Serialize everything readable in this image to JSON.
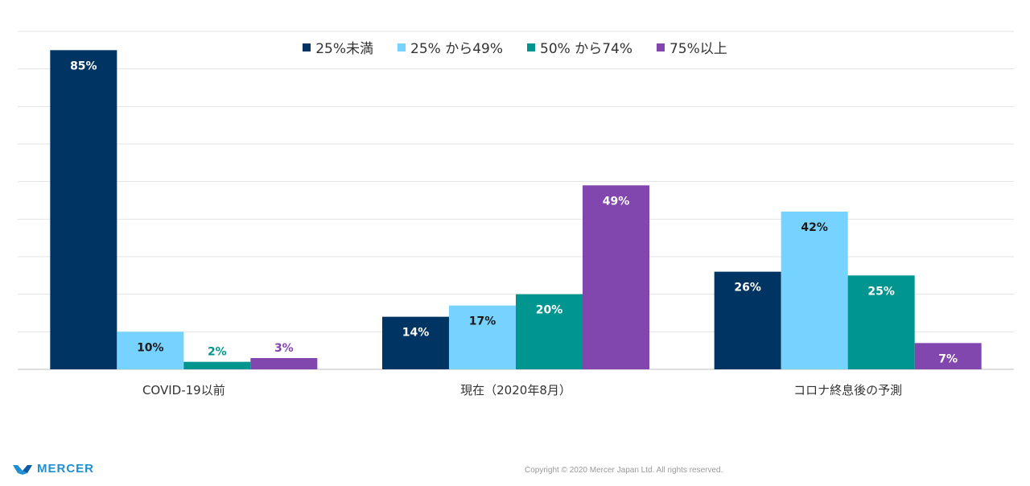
{
  "chart_data": {
    "type": "bar",
    "categories": [
      "COVID-19以前",
      "現在（2020年8月）",
      "コロナ終息後の予測"
    ],
    "series": [
      {
        "name": "25%未満",
        "color": "#003462",
        "values": [
          85,
          14,
          26
        ],
        "labels": [
          "85%",
          "14%",
          "26%"
        ],
        "label_color": "#ffffff"
      },
      {
        "name": "25% から49%",
        "color": "#76d2ff",
        "values": [
          10,
          17,
          42
        ],
        "labels": [
          "10%",
          "17%",
          "42%"
        ],
        "label_color": "#1a1a1a"
      },
      {
        "name": "50% から74%",
        "color": "#00968f",
        "values": [
          2,
          20,
          25
        ],
        "labels": [
          "2%",
          "20%",
          "25%"
        ],
        "label_color": "#ffffff",
        "label_color_outside": "#00968f"
      },
      {
        "name": "75%以上",
        "color": "#8246af",
        "values": [
          3,
          49,
          7
        ],
        "labels": [
          "3%",
          "49%",
          "7%"
        ],
        "label_color": "#ffffff",
        "label_color_outside": "#8246af"
      }
    ],
    "ylim": [
      0,
      90
    ],
    "grid": true,
    "legend": "top-center"
  },
  "footer": {
    "brand": "MERCER",
    "brand_color": "#1f8fd1",
    "copyright": "Copyright © 2020 Mercer Japan Ltd. All rights reserved."
  }
}
